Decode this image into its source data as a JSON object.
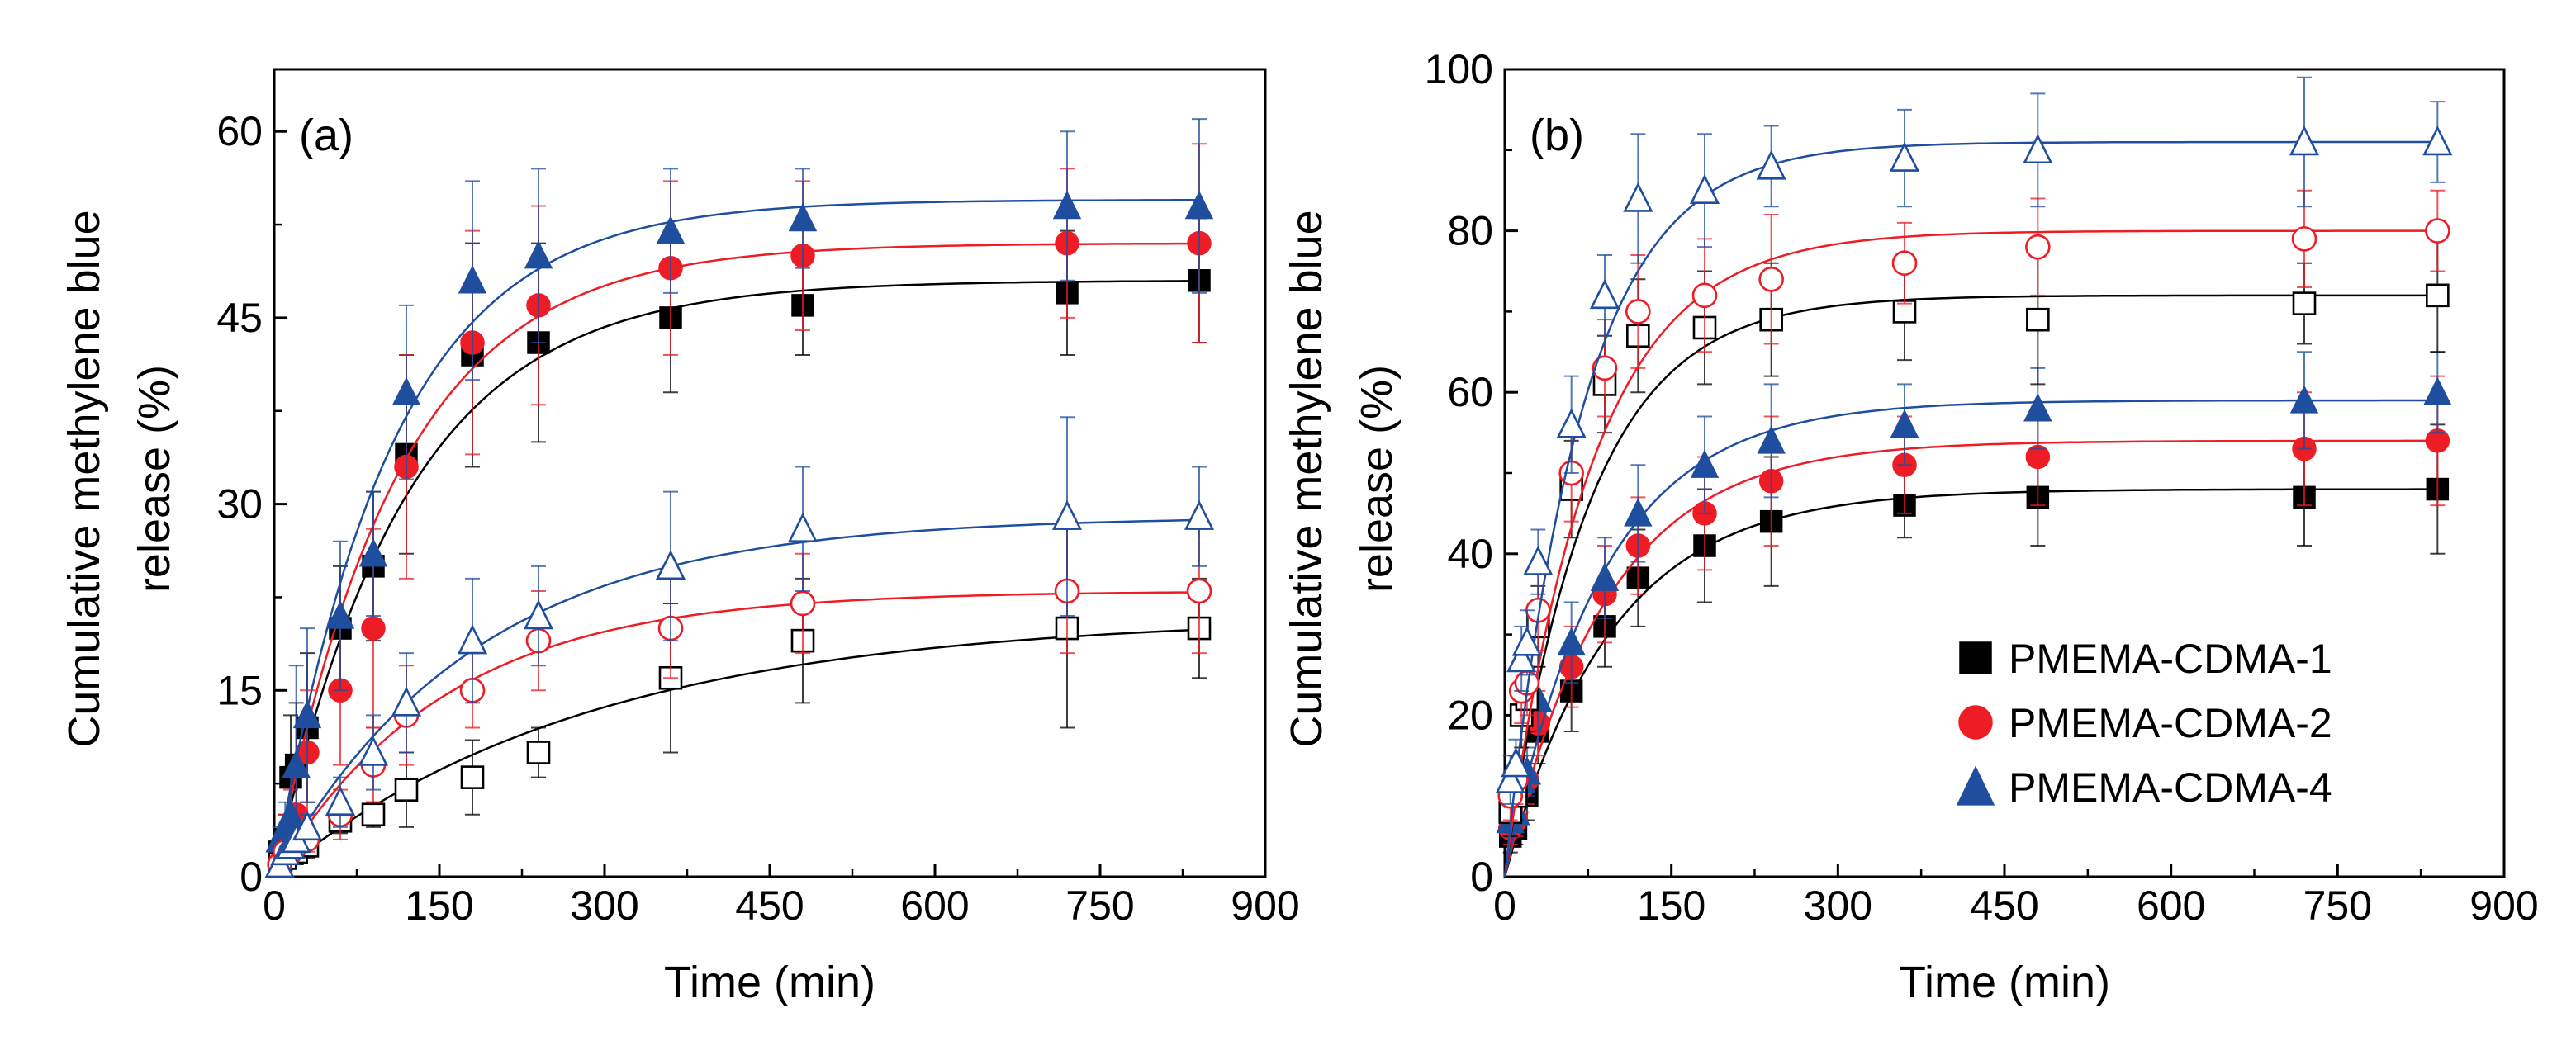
{
  "chart_data": [
    {
      "type": "scatter",
      "panel_label": "(a)",
      "xlabel": "Time (min)",
      "ylabel_lines": [
        "Cumulative methylene blue",
        "release (%)"
      ],
      "xlim": [
        0,
        900
      ],
      "ylim": [
        0,
        65
      ],
      "xticks": [
        0,
        150,
        300,
        450,
        600,
        750,
        900
      ],
      "yticks": [
        0,
        15,
        30,
        45,
        60
      ],
      "x": [
        5,
        10,
        15,
        20,
        30,
        60,
        90,
        120,
        180,
        240,
        360,
        480,
        720,
        840
      ],
      "series": [
        {
          "name": "PMEMA-CDMA-1",
          "marker": "square",
          "filled": true,
          "color": "#000000",
          "values": [
            2,
            3,
            8,
            9,
            12,
            20,
            25,
            34,
            42,
            43,
            45,
            46,
            47,
            48
          ],
          "errors": [
            1,
            2,
            5,
            5,
            6,
            5,
            6,
            8,
            9,
            8,
            6,
            4,
            5,
            5
          ],
          "fit": {
            "plateau": 48,
            "k": 0.0085
          }
        },
        {
          "name": "PMEMA-CDMA-2",
          "marker": "circle",
          "filled": true,
          "color": "#ee1c25",
          "values": [
            2,
            3,
            4,
            5,
            10,
            15,
            20,
            33,
            43,
            46,
            49,
            50,
            51,
            51
          ],
          "errors": [
            1,
            2,
            3,
            3,
            5,
            6,
            8,
            9,
            9,
            8,
            7,
            6,
            6,
            8
          ],
          "fit": {
            "plateau": 51,
            "k": 0.009
          }
        },
        {
          "name": "PMEMA-CDMA-4",
          "marker": "triangle",
          "filled": true,
          "color": "#1f4e9e",
          "values": [
            3,
            4,
            5,
            9,
            13,
            21,
            26,
            39,
            48,
            50,
            52,
            53,
            54,
            54
          ],
          "errors": [
            1,
            2,
            3,
            8,
            7,
            6,
            5,
            7,
            8,
            7,
            5,
            4,
            6,
            7
          ],
          "fit": {
            "plateau": 54.5,
            "k": 0.0095
          }
        },
        {
          "name": "PMEMA-CDMA-1",
          "marker": "square",
          "filled": false,
          "color": "#000000",
          "values": [
            1,
            1.5,
            2,
            2,
            2.5,
            4.5,
            5,
            7,
            8,
            10,
            16,
            19,
            20,
            20
          ],
          "errors": [
            0.5,
            1,
            1,
            1,
            1,
            1,
            1,
            3,
            3,
            2,
            6,
            5,
            8,
            4
          ],
          "fit": {
            "plateau": 21,
            "k": 0.0035
          }
        },
        {
          "name": "PMEMA-CDMA-2",
          "marker": "circle",
          "filled": false,
          "color": "#ee1c25",
          "values": [
            1,
            2,
            2,
            2.5,
            3,
            5,
            9,
            13,
            15,
            19,
            20,
            22,
            23,
            23
          ],
          "errors": [
            0.5,
            1,
            1,
            1,
            1,
            2,
            3,
            4,
            3,
            4,
            4,
            4,
            5,
            5
          ],
          "fit": {
            "plateau": 23,
            "k": 0.0065
          }
        },
        {
          "name": "PMEMA-CDMA-4",
          "marker": "triangle",
          "filled": false,
          "color": "#1f4e9e",
          "values": [
            1,
            2,
            2.5,
            3,
            4,
            6,
            10,
            14,
            19,
            21,
            25,
            28,
            29,
            29
          ],
          "errors": [
            0.5,
            1,
            1,
            1,
            1,
            2,
            3,
            4,
            5,
            4,
            6,
            5,
            8,
            4
          ],
          "fit": {
            "plateau": 29,
            "k": 0.0055
          }
        }
      ]
    },
    {
      "type": "scatter",
      "panel_label": "(b)",
      "xlabel": "Time (min)",
      "ylabel_lines": [
        "Cumulative methylene blue",
        "release (%)"
      ],
      "xlim": [
        0,
        900
      ],
      "ylim": [
        0,
        100
      ],
      "xticks": [
        0,
        150,
        300,
        450,
        600,
        750,
        900
      ],
      "yticks": [
        0,
        20,
        40,
        60,
        80,
        100
      ],
      "x": [
        5,
        10,
        15,
        20,
        30,
        60,
        90,
        120,
        180,
        240,
        360,
        480,
        720,
        840
      ],
      "legend_position": "bottom-right",
      "legend": [
        {
          "label": "PMEMA-CDMA-1",
          "marker": "square",
          "color": "#000000"
        },
        {
          "label": "PMEMA-CDMA-2",
          "marker": "circle",
          "color": "#ee1c25"
        },
        {
          "label": "PMEMA-CDMA-4",
          "marker": "triangle",
          "color": "#1f4e9e"
        }
      ],
      "series": [
        {
          "name": "PMEMA-CDMA-1",
          "marker": "square",
          "filled": true,
          "color": "#000000",
          "values": [
            5,
            6,
            10,
            10,
            18,
            23,
            31,
            37,
            41,
            44,
            46,
            47,
            47,
            48
          ],
          "errors": [
            2,
            2,
            3,
            3,
            4,
            5,
            5,
            6,
            7,
            8,
            4,
            6,
            6,
            8
          ],
          "fit": {
            "plateau": 48,
            "k": 0.0105
          }
        },
        {
          "name": "PMEMA-CDMA-2",
          "marker": "circle",
          "filled": true,
          "color": "#ee1c25",
          "values": [
            6,
            7,
            11,
            12,
            19,
            26,
            35,
            41,
            45,
            49,
            51,
            52,
            53,
            54
          ],
          "errors": [
            2,
            2,
            3,
            3,
            4,
            5,
            6,
            6,
            7,
            8,
            6,
            6,
            7,
            8
          ],
          "fit": {
            "plateau": 54,
            "k": 0.011
          }
        },
        {
          "name": "PMEMA-CDMA-4",
          "marker": "triangle",
          "filled": true,
          "color": "#1f4e9e",
          "values": [
            7,
            8,
            12,
            13,
            22,
            29,
            37,
            45,
            51,
            54,
            56,
            58,
            59,
            60
          ],
          "errors": [
            2,
            2,
            3,
            3,
            4,
            5,
            5,
            6,
            6,
            7,
            5,
            5,
            6,
            5
          ],
          "fit": {
            "plateau": 59,
            "k": 0.0115
          }
        },
        {
          "name": "PMEMA-CDMA-1",
          "marker": "square",
          "filled": false,
          "color": "#000000",
          "values": [
            8,
            10,
            20,
            22,
            31,
            48,
            61,
            67,
            68,
            69,
            70,
            69,
            71,
            72
          ],
          "errors": [
            3,
            3,
            4,
            4,
            5,
            6,
            6,
            7,
            7,
            7,
            6,
            8,
            5,
            7
          ],
          "fit": {
            "plateau": 72,
            "k": 0.0135
          }
        },
        {
          "name": "PMEMA-CDMA-2",
          "marker": "circle",
          "filled": false,
          "color": "#ee1c25",
          "values": [
            10,
            12,
            23,
            24,
            33,
            50,
            63,
            70,
            72,
            74,
            76,
            78,
            79,
            80
          ],
          "errors": [
            3,
            3,
            4,
            4,
            5,
            6,
            6,
            7,
            7,
            8,
            5,
            6,
            6,
            5
          ],
          "fit": {
            "plateau": 80,
            "k": 0.013
          }
        },
        {
          "name": "PMEMA-CDMA-4",
          "marker": "triangle",
          "filled": false,
          "color": "#1f4e9e",
          "values": [
            12,
            14,
            27,
            29,
            39,
            56,
            72,
            84,
            85,
            88,
            89,
            90,
            91,
            91
          ],
          "errors": [
            3,
            3,
            4,
            4,
            4,
            6,
            5,
            8,
            7,
            5,
            6,
            7,
            8,
            5
          ],
          "fit": {
            "plateau": 91,
            "k": 0.0145
          }
        }
      ]
    }
  ]
}
